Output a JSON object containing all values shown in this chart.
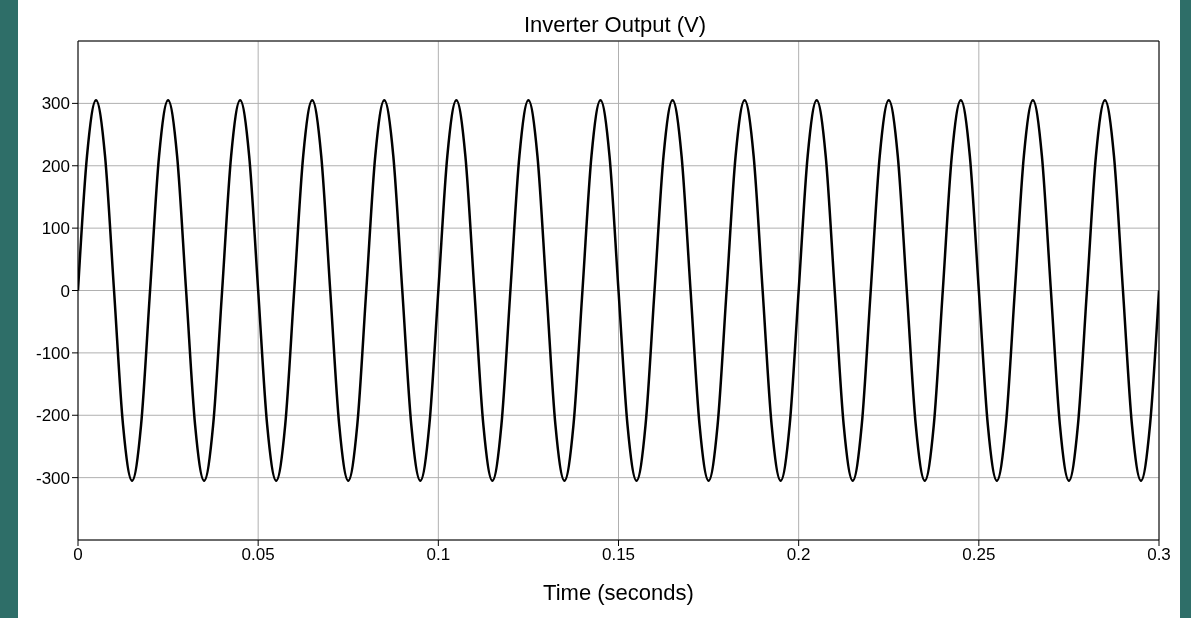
{
  "chart_data": {
    "type": "line",
    "title": "Inverter Output (V)",
    "xlabel": "Time (seconds)",
    "x": [
      0,
      0.0025,
      0.005,
      0.0075,
      0.01,
      0.0125,
      0.015,
      0.0175,
      0.02,
      0.0225,
      0.025,
      0.0275,
      0.03,
      0.0325,
      0.035,
      0.0375,
      0.04,
      0.0425,
      0.045,
      0.0475,
      0.05,
      0.0525,
      0.055,
      0.0575,
      0.06,
      0.0625,
      0.065,
      0.0675,
      0.07,
      0.0725,
      0.075,
      0.0775,
      0.08,
      0.0825,
      0.085,
      0.0875,
      0.09,
      0.0925,
      0.095,
      0.0975,
      0.1,
      0.1025,
      0.105,
      0.1075,
      0.11,
      0.1125,
      0.115,
      0.1175,
      0.12,
      0.1225,
      0.125,
      0.1275,
      0.13,
      0.1325,
      0.135,
      0.1375,
      0.14,
      0.1425,
      0.145,
      0.1475,
      0.15,
      0.1525,
      0.155,
      0.1575,
      0.16,
      0.1625,
      0.165,
      0.1675,
      0.17,
      0.1725,
      0.175,
      0.1775,
      0.18,
      0.1825,
      0.185,
      0.1875,
      0.19,
      0.1925,
      0.195,
      0.1975,
      0.2,
      0.2025,
      0.205,
      0.2075,
      0.21,
      0.2125,
      0.215,
      0.2175,
      0.22,
      0.2225,
      0.225,
      0.2275,
      0.23,
      0.2325,
      0.235,
      0.2375,
      0.24,
      0.2425,
      0.245,
      0.2475,
      0.25,
      0.2525,
      0.255,
      0.2575,
      0.26,
      0.2625,
      0.265,
      0.2675,
      0.27,
      0.2725,
      0.275,
      0.2775,
      0.28,
      0.2825,
      0.285,
      0.2875,
      0.29,
      0.2925,
      0.295,
      0.2975,
      0.3
    ],
    "series": [
      {
        "color": "#000000",
        "values": [
          0,
          216,
          305,
          216,
          0,
          -216,
          -305,
          -216,
          0,
          216,
          305,
          216,
          0,
          -216,
          -305,
          -216,
          0,
          216,
          305,
          216,
          0,
          -216,
          -305,
          -216,
          0,
          216,
          305,
          216,
          0,
          -216,
          -305,
          -216,
          0,
          216,
          305,
          216,
          0,
          -216,
          -305,
          -216,
          0,
          216,
          305,
          216,
          0,
          -216,
          -305,
          -216,
          0,
          216,
          305,
          216,
          0,
          -216,
          -305,
          -216,
          0,
          216,
          305,
          216,
          0,
          -216,
          -305,
          -216,
          0,
          216,
          305,
          216,
          0,
          -216,
          -305,
          -216,
          0,
          216,
          305,
          216,
          0,
          -216,
          -305,
          -216,
          0,
          216,
          305,
          216,
          0,
          -216,
          -305,
          -216,
          0,
          216,
          305,
          216,
          0,
          -216,
          -305,
          -216,
          0,
          216,
          305,
          216,
          0,
          -216,
          -305,
          -216,
          0,
          216,
          305,
          216,
          0,
          -216,
          -305,
          -216,
          0,
          216,
          305,
          216,
          0,
          -216,
          -305,
          -216,
          0
        ]
      }
    ],
    "xlim": [
      0,
      0.3
    ],
    "xticks": [
      0,
      0.05,
      0.1,
      0.15,
      0.2,
      0.25,
      0.3
    ],
    "ylim": [
      -400,
      400
    ],
    "yticks": [
      -300,
      -200,
      -100,
      0,
      100,
      200,
      300
    ],
    "grid": true
  }
}
